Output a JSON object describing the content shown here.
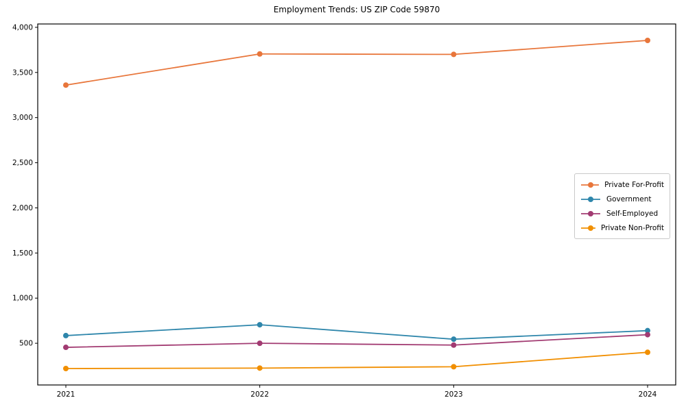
{
  "title": "Employment Trends: US ZIP Code 59870",
  "chart_data": {
    "type": "line",
    "title": "Employment Trends: US ZIP Code 59870",
    "xlabel": "",
    "ylabel": "",
    "x": [
      2021,
      2022,
      2023,
      2024
    ],
    "xticks": [
      "2021",
      "2022",
      "2023",
      "2024"
    ],
    "yticks": [
      500,
      1000,
      1500,
      2000,
      2500,
      3000,
      3500,
      4000
    ],
    "xlim": [
      2020.855,
      2024.145
    ],
    "ylim": [
      38,
      4037
    ],
    "grid": false,
    "legend_position": "center right",
    "series": [
      {
        "name": "Private For-Profit",
        "color": "#E8763B",
        "values": [
          3360,
          3705,
          3700,
          3855
        ]
      },
      {
        "name": "Government",
        "color": "#2E86AB",
        "values": [
          585,
          705,
          545,
          640
        ]
      },
      {
        "name": "Self-Employed",
        "color": "#A23B72",
        "values": [
          455,
          500,
          480,
          595
        ]
      },
      {
        "name": "Private Non-Profit",
        "color": "#F18F01",
        "values": [
          220,
          225,
          240,
          400
        ]
      }
    ]
  }
}
